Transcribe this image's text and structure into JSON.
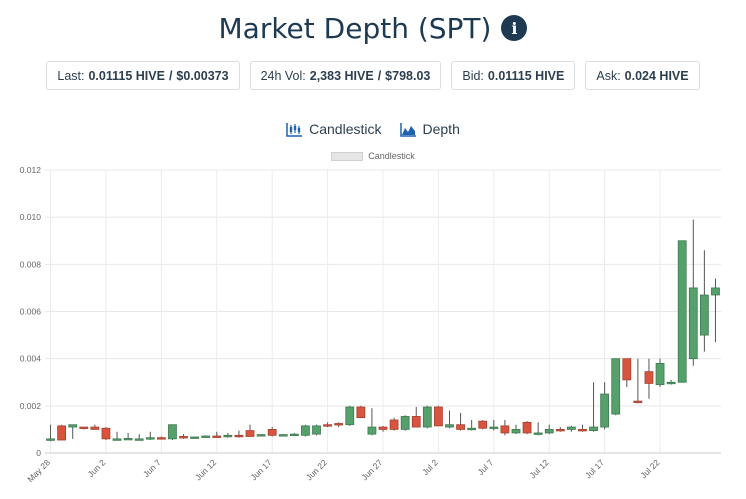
{
  "header": {
    "title": "Market Depth (SPT)",
    "info_icon": "info-circle-icon"
  },
  "stats": [
    {
      "label": "Last:",
      "value": "0.01115 HIVE",
      "extra": "$0.00373"
    },
    {
      "label": "24h Vol:",
      "value": "2,383 HIVE",
      "extra": "$798.03"
    },
    {
      "label": "Bid:",
      "value": "0.01115 HIVE"
    },
    {
      "label": "Ask:",
      "value": "0.024 HIVE"
    }
  ],
  "tabs": [
    {
      "label": "Candlestick",
      "icon": "candlestick-icon"
    },
    {
      "label": "Depth",
      "icon": "depth-chart-icon"
    }
  ],
  "colors": {
    "up": "#55a06b",
    "down": "#d9543f",
    "up_border": "#3f7a52",
    "down_border": "#a5402f",
    "wick": "#555555"
  },
  "chart_data": {
    "type": "candlestick",
    "legend": [
      "Candlestick"
    ],
    "ylim": [
      0,
      0.012
    ],
    "y_ticks": [
      "0",
      "0.002",
      "0.004",
      "0.006",
      "0.008",
      "0.010",
      "0.012"
    ],
    "x_ticks": [
      "May 28",
      "Jun 2",
      "Jun 7",
      "Jun 12",
      "Jun 17",
      "Jun 22",
      "Jun 27",
      "Jul 2",
      "Jul 7",
      "Jul 12",
      "Jul 17",
      "Jul 22"
    ],
    "candles": [
      {
        "date": "May 28",
        "open": 0.00055,
        "high": 0.0012,
        "low": 0.0005,
        "close": 0.0006
      },
      {
        "date": "May 29",
        "open": 0.00115,
        "high": 0.0012,
        "low": 0.00055,
        "close": 0.00055
      },
      {
        "date": "May 30",
        "open": 0.0011,
        "high": 0.0012,
        "low": 0.0006,
        "close": 0.0012
      },
      {
        "date": "May 31",
        "open": 0.0011,
        "high": 0.0011,
        "low": 0.001,
        "close": 0.00105
      },
      {
        "date": "Jun 1",
        "open": 0.0011,
        "high": 0.0012,
        "low": 0.001,
        "close": 0.001
      },
      {
        "date": "Jun 2",
        "open": 0.00105,
        "high": 0.0011,
        "low": 0.00055,
        "close": 0.0006
      },
      {
        "date": "Jun 3",
        "open": 0.0006,
        "high": 0.0009,
        "low": 0.00055,
        "close": 0.0006
      },
      {
        "date": "Jun 4",
        "open": 0.0006,
        "high": 0.00085,
        "low": 0.00055,
        "close": 0.00062
      },
      {
        "date": "Jun 5",
        "open": 0.0006,
        "high": 0.0008,
        "low": 0.00055,
        "close": 0.0006
      },
      {
        "date": "Jun 6",
        "open": 0.0006,
        "high": 0.0009,
        "low": 0.00055,
        "close": 0.00065
      },
      {
        "date": "Jun 7",
        "open": 0.00065,
        "high": 0.0007,
        "low": 0.0006,
        "close": 0.00062
      },
      {
        "date": "Jun 8",
        "open": 0.0006,
        "high": 0.0012,
        "low": 0.00055,
        "close": 0.0012
      },
      {
        "date": "Jun 9",
        "open": 0.0007,
        "high": 0.0008,
        "low": 0.0006,
        "close": 0.00065
      },
      {
        "date": "Jun 10",
        "open": 0.00065,
        "high": 0.0007,
        "low": 0.0006,
        "close": 0.00068
      },
      {
        "date": "Jun 11",
        "open": 0.0007,
        "high": 0.00075,
        "low": 0.00065,
        "close": 0.00072
      },
      {
        "date": "Jun 12",
        "open": 0.00072,
        "high": 0.0009,
        "low": 0.00065,
        "close": 0.0007
      },
      {
        "date": "Jun 13",
        "open": 0.0007,
        "high": 0.00085,
        "low": 0.00065,
        "close": 0.00075
      },
      {
        "date": "Jun 14",
        "open": 0.00075,
        "high": 0.00095,
        "low": 0.00065,
        "close": 0.0007
      },
      {
        "date": "Jun 15",
        "open": 0.00095,
        "high": 0.0012,
        "low": 0.00075,
        "close": 0.0007
      },
      {
        "date": "Jun 16",
        "open": 0.00075,
        "high": 0.0008,
        "low": 0.0007,
        "close": 0.00078
      },
      {
        "date": "Jun 17",
        "open": 0.001,
        "high": 0.0011,
        "low": 0.0007,
        "close": 0.00075
      },
      {
        "date": "Jun 18",
        "open": 0.00075,
        "high": 0.0008,
        "low": 0.0007,
        "close": 0.00078
      },
      {
        "date": "Jun 19",
        "open": 0.00078,
        "high": 0.00085,
        "low": 0.00072,
        "close": 0.0008
      },
      {
        "date": "Jun 20",
        "open": 0.00075,
        "high": 0.0012,
        "low": 0.0007,
        "close": 0.00115
      },
      {
        "date": "Jun 21",
        "open": 0.0008,
        "high": 0.0012,
        "low": 0.00075,
        "close": 0.00115
      },
      {
        "date": "Jun 22",
        "open": 0.0012,
        "high": 0.0013,
        "low": 0.0011,
        "close": 0.00115
      },
      {
        "date": "Jun 23",
        "open": 0.00125,
        "high": 0.0013,
        "low": 0.0011,
        "close": 0.0012
      },
      {
        "date": "Jun 24",
        "open": 0.0012,
        "high": 0.002,
        "low": 0.00115,
        "close": 0.00195
      },
      {
        "date": "Jun 25",
        "open": 0.00195,
        "high": 0.002,
        "low": 0.0015,
        "close": 0.0015
      },
      {
        "date": "Jun 26",
        "open": 0.0008,
        "high": 0.0019,
        "low": 0.00075,
        "close": 0.0011
      },
      {
        "date": "Jun 27",
        "open": 0.0011,
        "high": 0.00115,
        "low": 0.0009,
        "close": 0.001
      },
      {
        "date": "Jun 28",
        "open": 0.0014,
        "high": 0.0015,
        "low": 0.00095,
        "close": 0.001
      },
      {
        "date": "Jun 29",
        "open": 0.001,
        "high": 0.0016,
        "low": 0.00095,
        "close": 0.00155
      },
      {
        "date": "Jun 30",
        "open": 0.00155,
        "high": 0.00195,
        "low": 0.0011,
        "close": 0.0011
      },
      {
        "date": "Jul 1",
        "open": 0.0011,
        "high": 0.002,
        "low": 0.00105,
        "close": 0.00195
      },
      {
        "date": "Jul 2",
        "open": 0.00195,
        "high": 0.002,
        "low": 0.00115,
        "close": 0.00115
      },
      {
        "date": "Jul 3",
        "open": 0.0011,
        "high": 0.0018,
        "low": 0.00105,
        "close": 0.0012
      },
      {
        "date": "Jul 4",
        "open": 0.0012,
        "high": 0.0017,
        "low": 0.00095,
        "close": 0.001
      },
      {
        "date": "Jul 5",
        "open": 0.001,
        "high": 0.0014,
        "low": 0.00095,
        "close": 0.00105
      },
      {
        "date": "Jul 6",
        "open": 0.00135,
        "high": 0.0014,
        "low": 0.001,
        "close": 0.00105
      },
      {
        "date": "Jul 7",
        "open": 0.00105,
        "high": 0.0014,
        "low": 0.00095,
        "close": 0.0011
      },
      {
        "date": "Jul 8",
        "open": 0.00115,
        "high": 0.0014,
        "low": 0.00075,
        "close": 0.00085
      },
      {
        "date": "Jul 9",
        "open": 0.00085,
        "high": 0.0012,
        "low": 0.0008,
        "close": 0.001
      },
      {
        "date": "Jul 10",
        "open": 0.0013,
        "high": 0.00135,
        "low": 0.0008,
        "close": 0.00085
      },
      {
        "date": "Jul 11",
        "open": 0.0008,
        "high": 0.0013,
        "low": 0.00075,
        "close": 0.00085
      },
      {
        "date": "Jul 12",
        "open": 0.00085,
        "high": 0.0012,
        "low": 0.0008,
        "close": 0.001
      },
      {
        "date": "Jul 13",
        "open": 0.001,
        "high": 0.0011,
        "low": 0.0009,
        "close": 0.00095
      },
      {
        "date": "Jul 14",
        "open": 0.001,
        "high": 0.00115,
        "low": 0.0009,
        "close": 0.0011
      },
      {
        "date": "Jul 15",
        "open": 0.001,
        "high": 0.0012,
        "low": 0.0009,
        "close": 0.00095
      },
      {
        "date": "Jul 16",
        "open": 0.00095,
        "high": 0.003,
        "low": 0.0009,
        "close": 0.0011
      },
      {
        "date": "Jul 17",
        "open": 0.0011,
        "high": 0.003,
        "low": 0.001,
        "close": 0.0025
      },
      {
        "date": "Jul 18",
        "open": 0.00165,
        "high": 0.004,
        "low": 0.0016,
        "close": 0.004
      },
      {
        "date": "Jul 19",
        "open": 0.004,
        "high": 0.004,
        "low": 0.0028,
        "close": 0.0031
      },
      {
        "date": "Jul 20",
        "open": 0.0022,
        "high": 0.004,
        "low": 0.0021,
        "close": 0.00215
      },
      {
        "date": "Jul 21",
        "open": 0.00345,
        "high": 0.004,
        "low": 0.0023,
        "close": 0.00295
      },
      {
        "date": "Jul 22",
        "open": 0.0029,
        "high": 0.004,
        "low": 0.0028,
        "close": 0.0038
      },
      {
        "date": "Jul 23",
        "open": 0.003,
        "high": 0.0031,
        "low": 0.0029,
        "close": 0.003
      },
      {
        "date": "Jul 24",
        "open": 0.003,
        "high": 0.009,
        "low": 0.003,
        "close": 0.009
      },
      {
        "date": "Jul 25",
        "open": 0.004,
        "high": 0.0099,
        "low": 0.0037,
        "close": 0.007
      },
      {
        "date": "Jul 26",
        "open": 0.005,
        "high": 0.0086,
        "low": 0.0043,
        "close": 0.0067
      },
      {
        "date": "Jul 27",
        "open": 0.0067,
        "high": 0.0074,
        "low": 0.0047,
        "close": 0.007
      }
    ]
  }
}
